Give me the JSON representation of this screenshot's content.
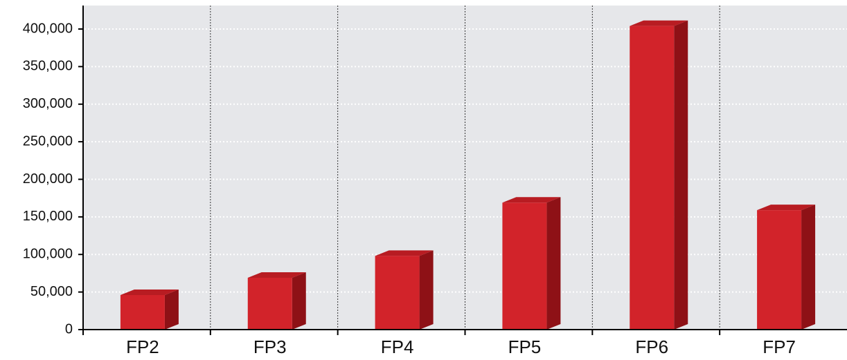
{
  "chart_data": {
    "type": "bar3d",
    "categories": [
      "FP2",
      "FP3",
      "FP4",
      "FP5",
      "FP6",
      "FP7"
    ],
    "values": [
      46000,
      69000,
      98000,
      169000,
      404000,
      159000
    ],
    "color": "#d2232a",
    "side_color": "#8e1116",
    "top_color": "#b81c22",
    "ylim": [
      0,
      400000
    ],
    "yticks": [
      0,
      {
        "value": 50000,
        "label": "50,000"
      },
      {
        "value": 100000,
        "label": "100,000"
      },
      {
        "value": 150000,
        "label": "150,000"
      },
      {
        "value": 200000,
        "label": "200,000"
      },
      {
        "value": 250000,
        "label": "250,000"
      },
      {
        "value": 300000,
        "label": "300,000"
      },
      {
        "value": 350000,
        "label": "350,000"
      },
      {
        "value": 400000,
        "label": "400,000"
      }
    ],
    "grid": true
  }
}
